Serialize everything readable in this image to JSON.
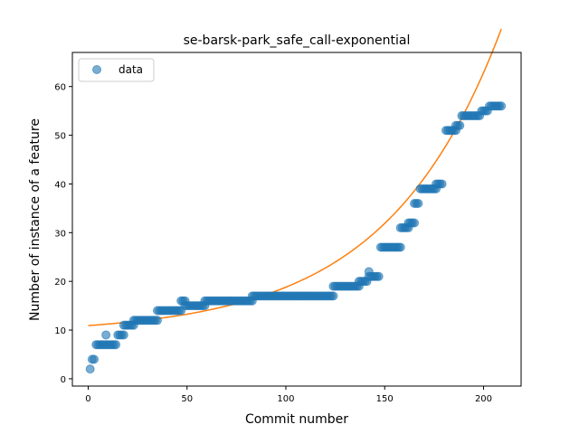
{
  "chart_data": {
    "type": "scatter",
    "title": "se-barsk-park_safe_call-exponential",
    "xlabel": "Commit number",
    "ylabel": "Number of instance of a feature",
    "xlim": [
      -8,
      219
    ],
    "ylim": [
      -1.5,
      67
    ],
    "xticks": [
      0,
      50,
      100,
      150,
      200
    ],
    "yticks": [
      0,
      10,
      20,
      30,
      40,
      50,
      60
    ],
    "grid": false,
    "legend_position": "top-left",
    "colors": {
      "data": "#1f77b4",
      "fit": "#ff7f0e"
    },
    "series": [
      {
        "name": "data",
        "kind": "scatter",
        "segments": [
          [
            1,
            1,
            2
          ],
          [
            2,
            3,
            4
          ],
          [
            4,
            9,
            7
          ],
          [
            9,
            9,
            9
          ],
          [
            10,
            14,
            7
          ],
          [
            15,
            18,
            9
          ],
          [
            18,
            23,
            11
          ],
          [
            23,
            35,
            12
          ],
          [
            35,
            47,
            14
          ],
          [
            47,
            49,
            16
          ],
          [
            49,
            59,
            15
          ],
          [
            59,
            83,
            16
          ],
          [
            83,
            124,
            17
          ],
          [
            124,
            137,
            19
          ],
          [
            137,
            141,
            20
          ],
          [
            142,
            142,
            22
          ],
          [
            142,
            147,
            21
          ],
          [
            148,
            158,
            27
          ],
          [
            158,
            162,
            31
          ],
          [
            162,
            165,
            32
          ],
          [
            165,
            167,
            36
          ],
          [
            168,
            176,
            39
          ],
          [
            176,
            179,
            40
          ],
          [
            181,
            186,
            51
          ],
          [
            186,
            188,
            52
          ],
          [
            189,
            198,
            54
          ],
          [
            199,
            202,
            55
          ],
          [
            203,
            209,
            56
          ]
        ]
      },
      {
        "name": "",
        "kind": "line",
        "model": "a*exp(b*x)+c",
        "params": {
          "a": 1.72,
          "b": 0.0172,
          "c": 9.2
        },
        "x_range": [
          0,
          209
        ]
      }
    ]
  }
}
